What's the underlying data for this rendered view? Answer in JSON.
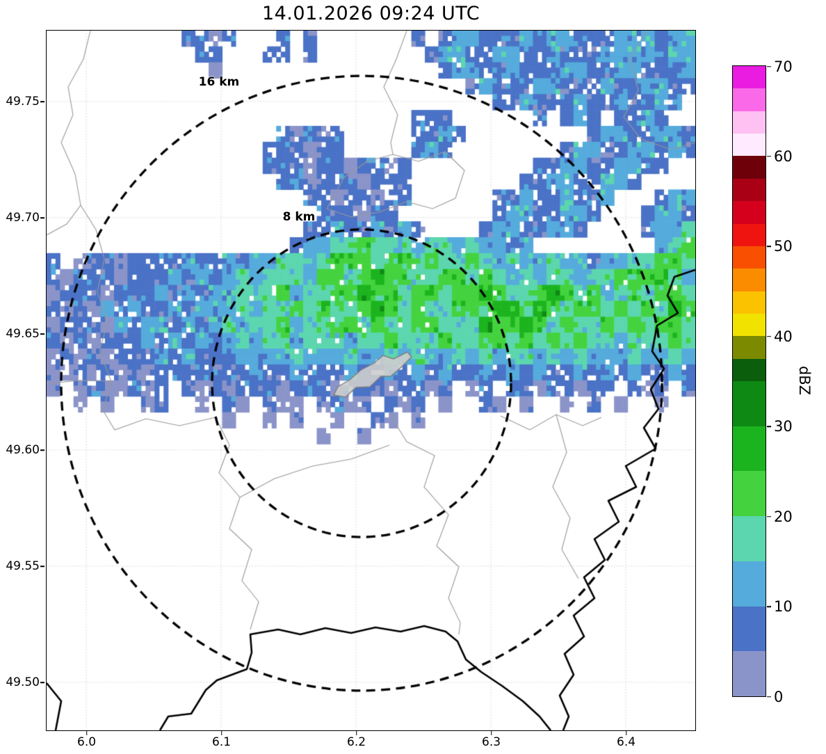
{
  "chart_data": {
    "type": "heatmap",
    "title": "14.01.2026 09:24 UTC",
    "x_axis": {
      "unit": "longitude_deg",
      "range": [
        5.9706,
        6.4515
      ],
      "ticks": [
        {
          "value": 6.0,
          "label": "6.0"
        },
        {
          "value": 6.1,
          "label": "6.1"
        },
        {
          "value": 6.2,
          "label": "6.2"
        },
        {
          "value": 6.3,
          "label": "6.3"
        },
        {
          "value": 6.4,
          "label": "6.4"
        }
      ]
    },
    "y_axis": {
      "unit": "latitude_deg",
      "range": [
        49.4793,
        49.7805
      ],
      "ticks": [
        {
          "value": 49.75,
          "label": "49.75"
        },
        {
          "value": 49.7,
          "label": "49.70"
        },
        {
          "value": 49.65,
          "label": "49.65"
        },
        {
          "value": 49.6,
          "label": "49.60"
        },
        {
          "value": 49.55,
          "label": "49.55"
        },
        {
          "value": 49.5,
          "label": "49.50"
        }
      ]
    },
    "colorbar": {
      "label": "dBZ",
      "range": [
        0,
        70
      ],
      "ticks": [
        0,
        10,
        20,
        30,
        40,
        50,
        60,
        70
      ],
      "bands": [
        {
          "from": 0,
          "to": 5,
          "color": "#8b94c9"
        },
        {
          "from": 5,
          "to": 10,
          "color": "#4a72c6"
        },
        {
          "from": 10,
          "to": 15,
          "color": "#55abdc"
        },
        {
          "from": 15,
          "to": 20,
          "color": "#5cd6ae"
        },
        {
          "from": 20,
          "to": 25,
          "color": "#44d33f"
        },
        {
          "from": 25,
          "to": 30,
          "color": "#1cb41e"
        },
        {
          "from": 30,
          "to": 35,
          "color": "#0e8a14"
        },
        {
          "from": 35,
          "to": 37.5,
          "color": "#0b5e0b"
        },
        {
          "from": 37.5,
          "to": 40,
          "color": "#7c8a00"
        },
        {
          "from": 40,
          "to": 42.5,
          "color": "#f2e200"
        },
        {
          "from": 42.5,
          "to": 45,
          "color": "#fbc200"
        },
        {
          "from": 45,
          "to": 47.5,
          "color": "#fb8c00"
        },
        {
          "from": 47.5,
          "to": 50,
          "color": "#f85000"
        },
        {
          "from": 50,
          "to": 52.5,
          "color": "#f01410"
        },
        {
          "from": 52.5,
          "to": 55,
          "color": "#d4001c"
        },
        {
          "from": 55,
          "to": 57.5,
          "color": "#aa0016"
        },
        {
          "from": 57.5,
          "to": 60,
          "color": "#6e000a"
        },
        {
          "from": 60,
          "to": 62.5,
          "color": "#ffeaff"
        },
        {
          "from": 62.5,
          "to": 65,
          "color": "#ffc0f2"
        },
        {
          "from": 65,
          "to": 67.5,
          "color": "#fa6ae8"
        },
        {
          "from": 67.5,
          "to": 70,
          "color": "#ea1ce2"
        }
      ]
    },
    "rings_center": {
      "lon": 6.2041,
      "lat": 49.6287
    },
    "range_rings": [
      {
        "label": "16 km",
        "radius_km": 16,
        "radius_lon_deg": 0.2227,
        "radius_lat_deg": 0.1323,
        "label_lon": 6.0984,
        "label_lat": 49.7583
      },
      {
        "label": "8 km",
        "radius_km": 8,
        "radius_lon_deg": 0.1108,
        "radius_lat_deg": 0.0662,
        "label_lon": 6.1577,
        "label_lat": 49.7003
      }
    ],
    "radar_grid": {
      "units": "dBZ",
      "cols": 48,
      "rows": 44,
      "encoding": {
        ".": null,
        "1": 2.5,
        "2": 7.5,
        "3": 12.5,
        "4": 17.5,
        "5": 22.5,
        "6": 27.5,
        "7": 32.5
      },
      "rows_data": [
        [
          "..........",
          "2212",
          "...",
          "2",
          ".",
          "2",
          ".......",
          "2.2332223233222333233"
        ],
        [
          "...........",
          "22",
          "...",
          "22.2",
          "........",
          "23322332232223333233"
        ],
        [
          "............",
          "1",
          "................",
          "2332232223322332223"
        ],
        [
          "...............................",
          "23222332223223322"
        ],
        [
          ".................................",
          "22322232232232",
          "."
        ],
        [
          "...........................",
          "222",
          "......",
          "2.232.2232",
          ".."
        ],
        [
          ".................",
          "21222",
          ".....",
          "2232",
          ".........",
          "23322332"
        ],
        [
          "................",
          "222122",
          ".....",
          "232",
          "........",
          "2332233232"
        ],
        [
          "................",
          "22212212212",
          ".........",
          "2233223322",
          ".."
        ],
        [
          ".................",
          "2212221222",
          "........",
          "223322332",
          "...."
        ],
        [
          "...................",
          "22122122",
          "......",
          "223223223",
          "...",
          "233"
        ],
        [
          "....................",
          "222122",
          ".......",
          "23322332",
          "...",
          "2332"
        ],
        [
          "...................",
          "223223232",
          "....",
          "23322332",
          "....",
          "2334"
        ],
        [
          "..................",
          "23",
          "344544434434",
          "3323",
          "........",
          ".",
          "345"
        ],
        [
          "2.12212",
          "22232232",
          "33443",
          "455545545445",
          "434334",
          "3323",
          "344554"
        ],
        [
          "212221",
          "2223232",
          "3434443",
          "55456554455",
          "4543434",
          "434455",
          "5543"
        ],
        [
          "122212",
          "2232323",
          "3444534",
          "45565545545",
          "5654456",
          "545345",
          "4554"
        ],
        [
          "212132",
          "3223233",
          "3434454",
          "54456545445",
          "5566465",
          "455454",
          "5465"
        ],
        [
          "122213",
          "2332323",
          "4344534",
          "45545445544",
          "4655654",
          "544545",
          "4554"
        ],
        [
          "212122",
          "2323232",
          "3434434",
          "44344544454",
          "4554545",
          "454434",
          "4454"
        ],
        [
          "121212",
          "2232322",
          "2333343",
          "33433434334",
          "3434434",
          "343334",
          "3343"
        ],
        [
          "112121",
          "2122222",
          "2232232",
          "22322323232",
          "2323232",
          "232323",
          "2232"
        ],
        [
          "1.1211",
          "212.212",
          "1222122",
          "2122212212.",
          "12.2212",
          "2122.2",
          "12.2"
        ],
        [
          "..1.1.",
          ".12..1.",
          "21.211.",
          "1211.212.1.",
          ".21.1..",
          "1.2.1.",
          ".1.."
        ],
        [
          ".............",
          "1..1.1.",
          ".1..21.1...",
          "................."
        ],
        [
          "....................",
          "1..1",
          "........................"
        ],
        [
          "................................................"
        ],
        [
          "................................................"
        ],
        [
          "................................................"
        ],
        [
          "................................................"
        ],
        [
          "................................................"
        ],
        [
          "................................................"
        ],
        [
          "................................................"
        ],
        [
          "................................................"
        ],
        [
          "................................................"
        ],
        [
          "................................................"
        ],
        [
          "................................................"
        ],
        [
          "................................................"
        ],
        [
          "................................................"
        ],
        [
          "................................................"
        ],
        [
          "................................................"
        ],
        [
          "................................................"
        ],
        [
          "................................................"
        ],
        [
          "................................................"
        ]
      ]
    }
  },
  "map_layers": {
    "admin_boundaries": [
      [
        [
          63,
          0
        ],
        [
          53,
          41
        ],
        [
          31,
          81
        ],
        [
          38,
          121
        ],
        [
          21,
          161
        ],
        [
          41,
          206
        ],
        [
          49,
          251
        ],
        [
          29,
          278
        ],
        [
          0,
          294
        ]
      ],
      [
        [
          49,
          251
        ],
        [
          71,
          286
        ],
        [
          83,
          328
        ],
        [
          73,
          376
        ],
        [
          88,
          418
        ],
        [
          76,
          461
        ],
        [
          93,
          504
        ],
        [
          81,
          546
        ],
        [
          98,
          574
        ],
        [
          143,
          558
        ],
        [
          191,
          568
        ],
        [
          243,
          556
        ]
      ],
      [
        [
          0,
          508
        ],
        [
          45,
          503
        ],
        [
          93,
          504
        ]
      ],
      [
        [
          243,
          556
        ],
        [
          263,
          596
        ],
        [
          248,
          636
        ],
        [
          278,
          671
        ],
        [
          263,
          716
        ],
        [
          295,
          746
        ],
        [
          281,
          791
        ],
        [
          305,
          821
        ],
        [
          293,
          861
        ]
      ],
      [
        [
          493,
          551
        ],
        [
          518,
          591
        ],
        [
          558,
          611
        ],
        [
          543,
          656
        ],
        [
          578,
          696
        ],
        [
          561,
          741
        ],
        [
          593,
          771
        ],
        [
          578,
          816
        ],
        [
          595,
          851
        ],
        [
          593,
          868
        ]
      ],
      [
        [
          278,
          671
        ],
        [
          328,
          644
        ],
        [
          383,
          626
        ],
        [
          438,
          616
        ],
        [
          493,
          596
        ]
      ],
      [
        [
          653,
          554
        ],
        [
          695,
          574
        ],
        [
          733,
          552
        ],
        [
          771,
          568
        ],
        [
          798,
          556
        ]
      ],
      [
        [
          733,
          552
        ],
        [
          748,
          606
        ],
        [
          728,
          656
        ],
        [
          753,
          701
        ],
        [
          741,
          746
        ],
        [
          765,
          788
        ]
      ],
      [
        [
          403,
          256
        ],
        [
          428,
          211
        ],
        [
          461,
          188
        ],
        [
          498,
          178
        ],
        [
          535,
          188
        ],
        [
          573,
          174
        ],
        [
          601,
          201
        ],
        [
          588,
          241
        ],
        [
          555,
          256
        ],
        [
          518,
          246
        ],
        [
          478,
          261
        ],
        [
          438,
          268
        ],
        [
          403,
          256
        ]
      ],
      [
        [
          518,
          0
        ],
        [
          503,
          41
        ],
        [
          485,
          81
        ],
        [
          505,
          121
        ],
        [
          495,
          161
        ],
        [
          498,
          178
        ]
      ],
      [
        [
          863,
          0
        ],
        [
          838,
          41
        ],
        [
          851,
          86
        ],
        [
          830,
          124
        ],
        [
          855,
          156
        ],
        [
          898,
          171
        ],
        [
          933,
          161
        ]
      ]
    ],
    "country_borders": [
      [
        [
          933,
          344
        ],
        [
          903,
          354
        ],
        [
          893,
          381
        ],
        [
          908,
          406
        ],
        [
          878,
          424
        ],
        [
          871,
          461
        ],
        [
          888,
          486
        ],
        [
          869,
          516
        ],
        [
          880,
          544
        ],
        [
          859,
          571
        ],
        [
          876,
          601
        ],
        [
          833,
          626
        ],
        [
          848,
          656
        ],
        [
          808,
          676
        ],
        [
          823,
          706
        ],
        [
          788,
          731
        ],
        [
          803,
          761
        ],
        [
          773,
          786
        ],
        [
          788,
          816
        ],
        [
          758,
          841
        ],
        [
          773,
          871
        ],
        [
          745,
          896
        ],
        [
          758,
          926
        ],
        [
          738,
          956
        ],
        [
          751,
          986
        ],
        [
          743,
          1006
        ]
      ],
      [
        [
          163,
          1006
        ],
        [
          175,
          986
        ],
        [
          208,
          982
        ],
        [
          229,
          948
        ],
        [
          245,
          934
        ],
        [
          288,
          918
        ],
        [
          295,
          894
        ],
        [
          293,
          868
        ],
        [
          333,
          861
        ],
        [
          365,
          868
        ],
        [
          401,
          859
        ],
        [
          438,
          866
        ],
        [
          473,
          858
        ],
        [
          509,
          864
        ],
        [
          543,
          856
        ],
        [
          574,
          864
        ],
        [
          591,
          878
        ],
        [
          603,
          904
        ],
        [
          625,
          922
        ],
        [
          655,
          942
        ],
        [
          685,
          964
        ],
        [
          709,
          986
        ],
        [
          725,
          1006
        ]
      ],
      [
        [
          0,
          938
        ],
        [
          21,
          964
        ],
        [
          13,
          1006
        ]
      ]
    ],
    "urban_area": [
      [
        413,
        524
      ],
      [
        430,
        527
      ],
      [
        445,
        513
      ],
      [
        465,
        512
      ],
      [
        481,
        497
      ],
      [
        495,
        497
      ],
      [
        511,
        483
      ],
      [
        525,
        469
      ],
      [
        519,
        462
      ],
      [
        499,
        472
      ],
      [
        484,
        467
      ],
      [
        471,
        478
      ],
      [
        452,
        488
      ],
      [
        436,
        502
      ],
      [
        419,
        512
      ]
    ]
  }
}
